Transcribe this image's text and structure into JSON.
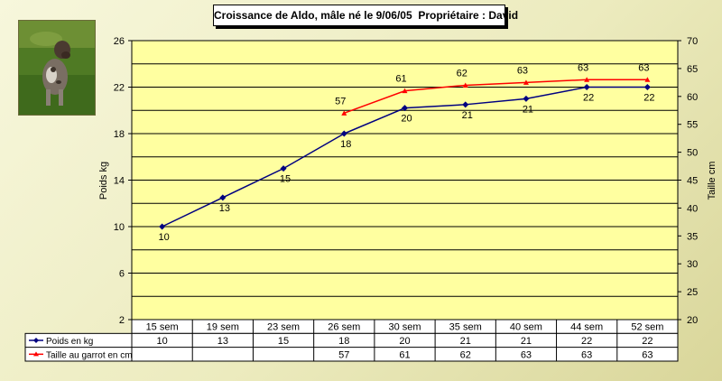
{
  "chart_data": {
    "type": "line",
    "title": "Croissance de Aldo, mâle né le 9/06/05  Propriétaire : David",
    "categories": [
      "15 sem",
      "19 sem",
      "23 sem",
      "26 sem",
      "30 sem",
      "35 sem",
      "40 sem",
      "44 sem",
      "52 sem"
    ],
    "ylabel": "Poids kg",
    "y2label": "Taille cm",
    "ylim": [
      2,
      26
    ],
    "yticks": [
      2,
      6,
      10,
      14,
      18,
      22,
      26
    ],
    "y2lim": [
      20,
      70
    ],
    "y2ticks": [
      20,
      25,
      30,
      35,
      40,
      45,
      50,
      55,
      60,
      65,
      70
    ],
    "grid": true,
    "legend_placement": "bottom data table",
    "series": [
      {
        "name": "Poids en kg",
        "axis": "left",
        "color": "#000080",
        "marker": "diamond",
        "values": [
          10,
          12.5,
          15,
          18,
          20.2,
          20.5,
          21,
          22,
          22
        ],
        "labels": [
          "10",
          "13",
          "15",
          "18",
          "20",
          "21",
          "21",
          "22",
          "22"
        ]
      },
      {
        "name": "Taille au garrot en cm",
        "axis": "right",
        "color": "#ff0000",
        "marker": "triangle",
        "values": [
          null,
          null,
          null,
          57,
          61,
          62,
          62.5,
          63,
          63
        ],
        "labels": [
          "",
          "",
          "",
          "57",
          "61",
          "62",
          "63",
          "63",
          "63"
        ]
      }
    ]
  },
  "photo": {
    "subject": "dog-photo"
  }
}
